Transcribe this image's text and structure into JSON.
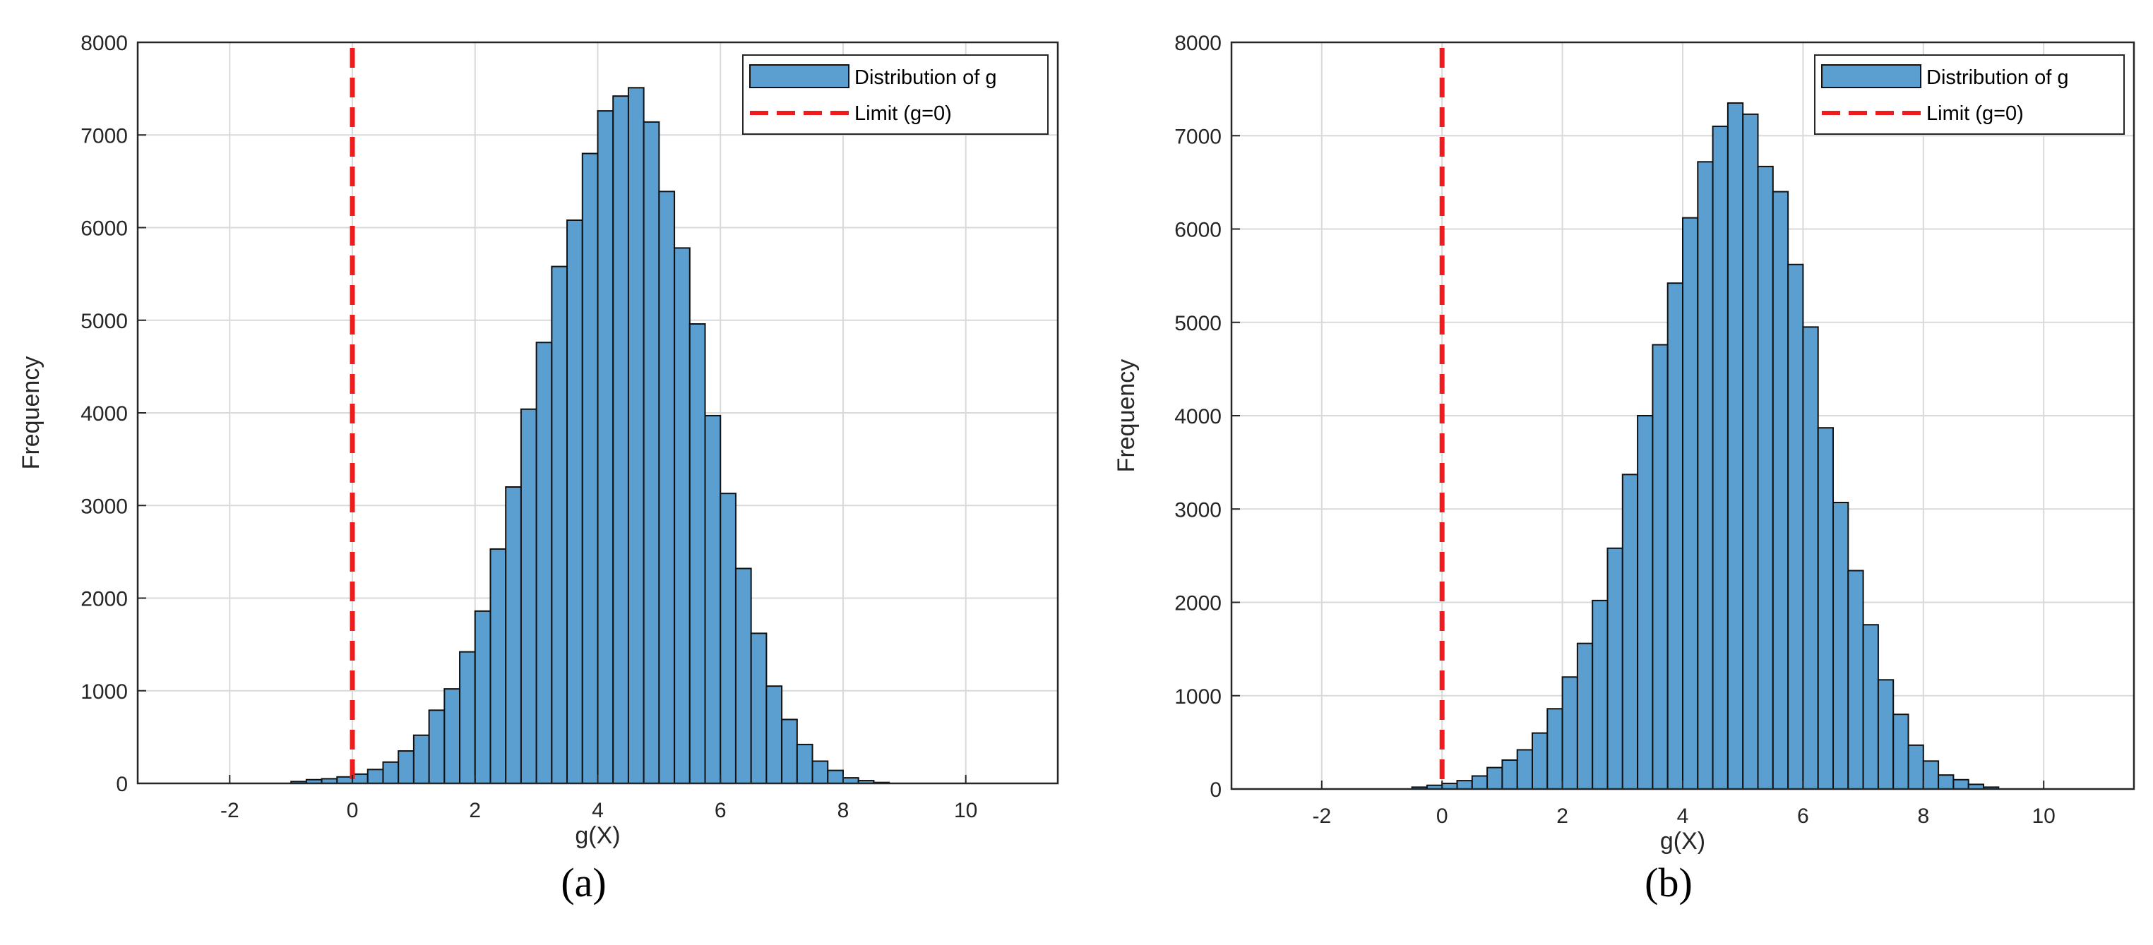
{
  "colors": {
    "bar_fill": "#5b9fd1",
    "bar_edge": "#111111",
    "limit_line": "#ee1c1c",
    "grid": "#d9d9d9",
    "axis": "#262626"
  },
  "chart_data": [
    {
      "type": "bar",
      "caption": "(a)",
      "title": "",
      "xlabel": "g(X)",
      "ylabel": "Frequency",
      "xlim": [
        -3.5,
        11.5
      ],
      "ylim": [
        0,
        8000
      ],
      "xticks": [
        -2,
        0,
        2,
        4,
        6,
        8,
        10
      ],
      "yticks": [
        0,
        1000,
        2000,
        3000,
        4000,
        5000,
        6000,
        7000,
        8000
      ],
      "grid": true,
      "legend_position": "top-right",
      "bin_width": 0.25,
      "bin_start": -1.0,
      "values": [
        20,
        40,
        50,
        70,
        100,
        150,
        230,
        350,
        520,
        790,
        1020,
        1420,
        1860,
        2530,
        3200,
        4040,
        4760,
        5580,
        6080,
        6800,
        7260,
        7420,
        7510,
        7140,
        6390,
        5780,
        4960,
        3970,
        3130,
        2320,
        1620,
        1050,
        690,
        420,
        240,
        140,
        60,
        30,
        10
      ],
      "series": [
        {
          "name": "Distribution of g",
          "kind": "histogram"
        },
        {
          "name": "Limit (g=0)",
          "kind": "vline",
          "x": 0
        }
      ]
    },
    {
      "type": "bar",
      "caption": "(b)",
      "title": "",
      "xlabel": "g(X)",
      "ylabel": "Frequency",
      "xlim": [
        -3.5,
        11.5
      ],
      "ylim": [
        0,
        8000
      ],
      "xticks": [
        -2,
        0,
        2,
        4,
        6,
        8,
        10
      ],
      "yticks": [
        0,
        1000,
        2000,
        3000,
        4000,
        5000,
        6000,
        7000,
        8000
      ],
      "grid": true,
      "legend_position": "top-right",
      "bin_width": 0.25,
      "bin_start": -0.5,
      "values": [
        20,
        40,
        60,
        90,
        140,
        230,
        310,
        420,
        600,
        860,
        1200,
        1560,
        2020,
        2580,
        3370,
        4000,
        4760,
        5420,
        6120,
        6720,
        7100,
        7350,
        7230,
        6670,
        6400,
        5620,
        4950,
        3870,
        3070,
        2340,
        1760,
        1170,
        800,
        470,
        300,
        150,
        100,
        50,
        20
      ],
      "series": [
        {
          "name": "Distribution of g",
          "kind": "histogram"
        },
        {
          "name": "Limit (g=0)",
          "kind": "vline",
          "x": 0
        }
      ]
    }
  ]
}
